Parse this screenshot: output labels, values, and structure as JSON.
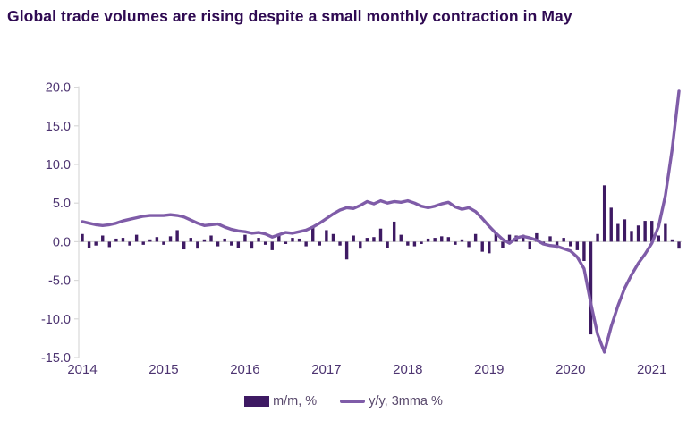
{
  "header": {
    "title": "Global trade volumes are rising despite a small monthly contraction in May"
  },
  "colors": {
    "background": "#ffffff",
    "title": "#2f0a52",
    "bar": "#3e1a63",
    "line": "#7f5ca8",
    "axis_text": "#4d3471",
    "axis_line": "#d9d9d9",
    "legend_text": "#5a4a6d"
  },
  "legend": {
    "bar_label": "m/m, %",
    "line_label": "y/y, 3mma %"
  },
  "chart_data": {
    "type": "combo-bar-line",
    "title": "Global trade volumes are rising despite a small monthly contraction in May",
    "xlabel": "",
    "ylabel": "",
    "ylim": [
      -15.0,
      20.0
    ],
    "grid": "none",
    "legend_position": "bottom-center",
    "x_tick_labels": [
      "2014",
      "2015",
      "2016",
      "2017",
      "2018",
      "2019",
      "2020",
      "2021"
    ],
    "y_ticks": {
      "labels": [
        "20.0",
        "15.0",
        "10.0",
        "5.0",
        "0.0",
        "-5.0",
        "-10.0",
        "-15.0"
      ],
      "values": [
        20,
        15,
        10,
        5,
        0,
        -5,
        -10,
        -15
      ]
    },
    "x_months": [
      "2014-01",
      "2014-02",
      "2014-03",
      "2014-04",
      "2014-05",
      "2014-06",
      "2014-07",
      "2014-08",
      "2014-09",
      "2014-10",
      "2014-11",
      "2014-12",
      "2015-01",
      "2015-02",
      "2015-03",
      "2015-04",
      "2015-05",
      "2015-06",
      "2015-07",
      "2015-08",
      "2015-09",
      "2015-10",
      "2015-11",
      "2015-12",
      "2016-01",
      "2016-02",
      "2016-03",
      "2016-04",
      "2016-05",
      "2016-06",
      "2016-07",
      "2016-08",
      "2016-09",
      "2016-10",
      "2016-11",
      "2016-12",
      "2017-01",
      "2017-02",
      "2017-03",
      "2017-04",
      "2017-05",
      "2017-06",
      "2017-07",
      "2017-08",
      "2017-09",
      "2017-10",
      "2017-11",
      "2017-12",
      "2018-01",
      "2018-02",
      "2018-03",
      "2018-04",
      "2018-05",
      "2018-06",
      "2018-07",
      "2018-08",
      "2018-09",
      "2018-10",
      "2018-11",
      "2018-12",
      "2019-01",
      "2019-02",
      "2019-03",
      "2019-04",
      "2019-05",
      "2019-06",
      "2019-07",
      "2019-08",
      "2019-09",
      "2019-10",
      "2019-11",
      "2019-12",
      "2020-01",
      "2020-02",
      "2020-03",
      "2020-04",
      "2020-05",
      "2020-06",
      "2020-07",
      "2020-08",
      "2020-09",
      "2020-10",
      "2020-11",
      "2020-12",
      "2021-01",
      "2021-02",
      "2021-03",
      "2021-04",
      "2021-05"
    ],
    "series": [
      {
        "name": "m/m, %",
        "type": "bar",
        "values": [
          1.0,
          -0.8,
          -0.5,
          0.8,
          -0.7,
          0.4,
          0.5,
          -0.5,
          0.9,
          -0.4,
          0.3,
          0.6,
          -0.4,
          0.7,
          1.5,
          -1.0,
          0.5,
          -0.9,
          0.3,
          0.8,
          -0.6,
          0.4,
          -0.5,
          -0.8,
          0.9,
          -0.9,
          0.5,
          -0.4,
          -1.1,
          0.8,
          -0.3,
          0.5,
          0.4,
          -0.6,
          1.9,
          -0.5,
          1.5,
          1.0,
          -0.5,
          -2.3,
          0.8,
          -0.9,
          0.5,
          0.6,
          1.7,
          -0.8,
          2.6,
          0.9,
          -0.5,
          -0.6,
          -0.3,
          0.4,
          0.5,
          0.7,
          0.6,
          -0.4,
          0.3,
          -0.7,
          1.0,
          -1.3,
          -1.5,
          1.2,
          -0.8,
          0.9,
          0.8,
          0.9,
          -1.0,
          1.1,
          -0.3,
          0.7,
          -0.9,
          0.5,
          -0.6,
          -1.1,
          -2.5,
          -12.0,
          1.0,
          7.3,
          4.4,
          2.3,
          2.9,
          1.4,
          2.1,
          2.7,
          2.7,
          0.8,
          2.3,
          0.3,
          -0.9
        ]
      },
      {
        "name": "y/y, 3mma %",
        "type": "line",
        "values": [
          2.6,
          2.4,
          2.2,
          2.1,
          2.2,
          2.4,
          2.7,
          2.9,
          3.1,
          3.3,
          3.4,
          3.4,
          3.4,
          3.5,
          3.4,
          3.2,
          2.8,
          2.4,
          2.1,
          2.2,
          2.3,
          1.9,
          1.6,
          1.4,
          1.3,
          1.1,
          1.2,
          1.0,
          0.6,
          0.9,
          1.2,
          1.1,
          1.3,
          1.5,
          1.9,
          2.4,
          3.0,
          3.6,
          4.1,
          4.4,
          4.3,
          4.7,
          5.2,
          4.9,
          5.3,
          5.0,
          5.2,
          5.1,
          5.3,
          5.0,
          4.6,
          4.4,
          4.6,
          4.9,
          5.1,
          4.5,
          4.2,
          4.4,
          3.9,
          3.0,
          2.0,
          1.1,
          0.3,
          -0.2,
          0.5,
          0.7,
          0.5,
          0.2,
          -0.3,
          -0.5,
          -0.6,
          -0.9,
          -1.2,
          -2.0,
          -3.5,
          -8.0,
          -12.0,
          -14.3,
          -11.0,
          -8.3,
          -6.0,
          -4.3,
          -2.8,
          -1.6,
          -0.2,
          2.0,
          6.0,
          12.0,
          19.5
        ]
      }
    ]
  }
}
